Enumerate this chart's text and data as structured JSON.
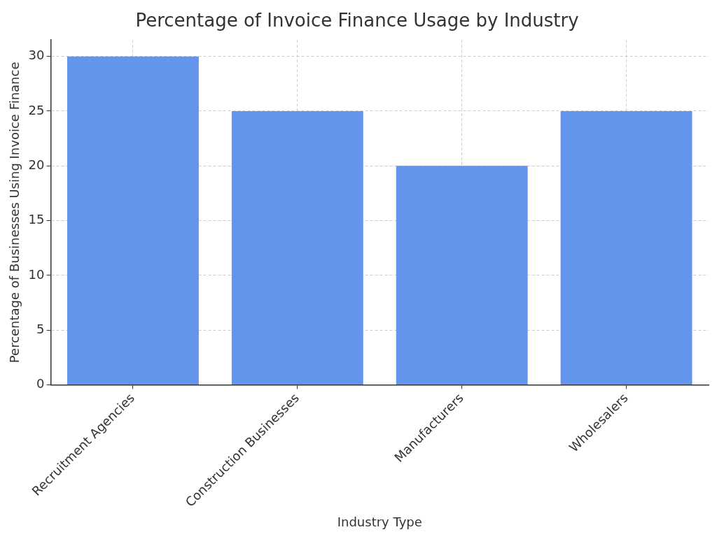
{
  "chart_data": {
    "type": "bar",
    "title": "Percentage of Invoice Finance Usage by Industry",
    "xlabel": "Industry Type",
    "ylabel": "Percentage of Businesses Using Invoice Finance",
    "categories": [
      "Recruitment Agencies",
      "Construction Businesses",
      "Manufacturers",
      "Wholesalers"
    ],
    "values": [
      30,
      25,
      20,
      25
    ],
    "color": "#6495ed",
    "ylim": [
      0,
      31.5
    ],
    "yticks": [
      0,
      5,
      10,
      15,
      20,
      25,
      30
    ],
    "grid": true
  }
}
